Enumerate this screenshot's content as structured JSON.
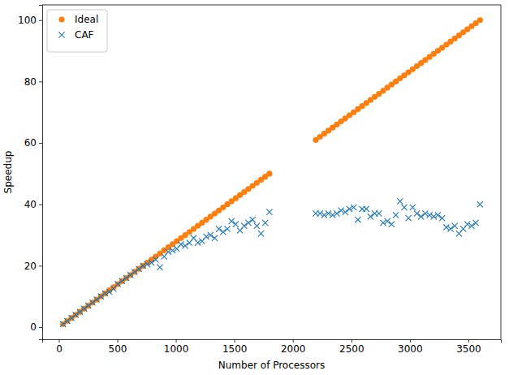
{
  "chart_data": {
    "type": "scatter",
    "x_label": "Number of Processors",
    "y_label": "Speedup",
    "x": [
      36,
      72,
      108,
      144,
      180,
      216,
      252,
      288,
      324,
      360,
      396,
      432,
      468,
      504,
      540,
      576,
      612,
      648,
      684,
      720,
      756,
      792,
      828,
      864,
      900,
      936,
      972,
      1008,
      1044,
      1080,
      1116,
      1152,
      1188,
      1224,
      1260,
      1296,
      1332,
      1368,
      1404,
      1440,
      1476,
      1512,
      1548,
      1584,
      1620,
      1656,
      1692,
      1728,
      1764,
      1800,
      2196,
      2232,
      2268,
      2304,
      2340,
      2376,
      2412,
      2448,
      2484,
      2520,
      2556,
      2592,
      2628,
      2664,
      2700,
      2736,
      2772,
      2808,
      2844,
      2880,
      2916,
      2952,
      2988,
      3024,
      3060,
      3096,
      3132,
      3168,
      3204,
      3240,
      3276,
      3312,
      3348,
      3384,
      3420,
      3456,
      3492,
      3528,
      3564,
      3600
    ],
    "series": [
      {
        "name": "Ideal",
        "color": "#ff7f0e",
        "marker": "o",
        "values": [
          1,
          2,
          3,
          4,
          5,
          6,
          7,
          8,
          9,
          10,
          11,
          12,
          13,
          14,
          15,
          16,
          17,
          18,
          19,
          20,
          21,
          22,
          23,
          24,
          25,
          26,
          27,
          28,
          29,
          30,
          31,
          32,
          33,
          34,
          35,
          36,
          37,
          38,
          39,
          40,
          41,
          42,
          43,
          44,
          45,
          46,
          47,
          48,
          49,
          50,
          61,
          62,
          63,
          64,
          65,
          66,
          67,
          68,
          69,
          70,
          71,
          72,
          73,
          74,
          75,
          76,
          77,
          78,
          79,
          80,
          81,
          82,
          83,
          84,
          85,
          86,
          87,
          88,
          89,
          90,
          91,
          92,
          93,
          94,
          95,
          96,
          97,
          98,
          99,
          100
        ]
      },
      {
        "name": "CAF",
        "color": "#1f77b4",
        "marker": "x",
        "values": [
          1,
          2,
          3,
          4,
          5,
          6,
          7,
          8,
          9,
          10,
          11,
          11.5,
          12.5,
          14,
          15,
          16,
          17,
          18,
          19,
          20,
          20.5,
          21,
          22,
          19.5,
          23,
          24.5,
          25,
          25.5,
          27,
          26.5,
          27.5,
          29,
          27.5,
          28,
          29.5,
          30,
          29,
          32,
          31,
          32,
          34.5,
          33.5,
          31.5,
          33,
          34,
          35,
          33,
          30.5,
          34,
          37.5,
          37,
          37,
          36.5,
          37,
          36.5,
          37,
          38,
          37.5,
          38.5,
          39,
          35,
          38.5,
          38.5,
          36,
          37,
          37,
          34,
          34.5,
          33.5,
          36.5,
          41,
          39,
          35.5,
          39,
          37,
          36,
          37,
          36.5,
          36,
          36.5,
          35.5,
          32.5,
          32,
          33,
          30.5,
          32,
          33.5,
          33,
          34,
          40
        ]
      }
    ],
    "xlim": [
      -142,
      3778
    ],
    "ylim": [
      -3.95,
      104.95
    ],
    "xticks": [
      0,
      500,
      1000,
      1500,
      2000,
      2500,
      3000,
      3500
    ],
    "yticks": [
      0,
      20,
      40,
      60,
      80,
      100
    ],
    "legend": "upper left",
    "grid": false
  }
}
